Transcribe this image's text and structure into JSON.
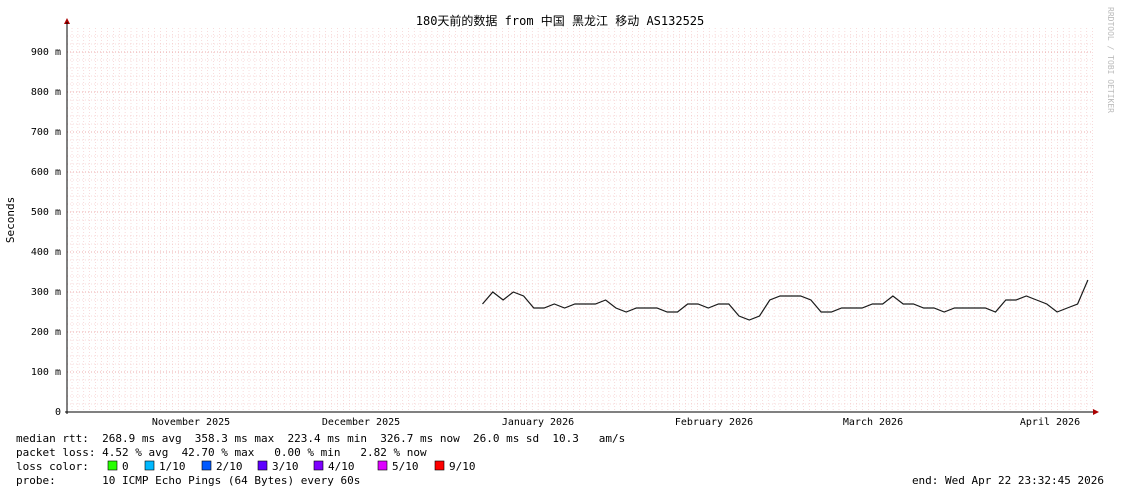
{
  "chart_data": {
    "type": "line",
    "title": "180天前的数据 from  中国 黑龙江 移动 AS132525",
    "y_label": "Seconds",
    "watermark": "RRDTOOL / TOBI OETIKER",
    "ylim": [
      0,
      0.96
    ],
    "yticks": [
      0,
      {
        "value": 0.1,
        "label": "100 m"
      },
      {
        "value": 0.2,
        "label": "200 m"
      },
      {
        "value": 0.3,
        "label": "300 m"
      },
      {
        "value": 0.4,
        "label": "400 m"
      },
      {
        "value": 0.5,
        "label": "500 m"
      },
      {
        "value": 0.6,
        "label": "600 m"
      },
      {
        "value": 0.7,
        "label": "700 m"
      },
      {
        "value": 0.8,
        "label": "800 m"
      },
      {
        "value": 0.9,
        "label": "900 m"
      }
    ],
    "month_labels": [
      "November 2025",
      "December 2025",
      "January 2026",
      "February 2026",
      "March 2026",
      "April 2026"
    ],
    "grid": true,
    "series": [
      {
        "name": "median rtt",
        "color": "#1a1a1a",
        "values": [
          null,
          null,
          null,
          null,
          null,
          null,
          null,
          null,
          null,
          null,
          null,
          null,
          null,
          null,
          null,
          null,
          null,
          null,
          null,
          null,
          null,
          null,
          null,
          null,
          null,
          null,
          null,
          null,
          null,
          null,
          null,
          null,
          null,
          null,
          null,
          null,
          null,
          null,
          null,
          null,
          0.27,
          0.3,
          0.28,
          0.3,
          0.29,
          0.26,
          0.26,
          0.27,
          0.26,
          0.27,
          0.27,
          0.27,
          0.28,
          0.26,
          0.25,
          0.26,
          0.26,
          0.26,
          0.25,
          0.25,
          0.27,
          0.27,
          0.26,
          0.27,
          0.27,
          0.24,
          0.23,
          0.24,
          0.28,
          0.29,
          0.29,
          0.29,
          0.28,
          0.25,
          0.25,
          0.26,
          0.26,
          0.26,
          0.27,
          0.27,
          0.29,
          0.27,
          0.27,
          0.26,
          0.26,
          0.25,
          0.26,
          0.26,
          0.26,
          0.26,
          0.25,
          0.28,
          0.28,
          0.29,
          0.28,
          0.27,
          0.25,
          0.26,
          0.27,
          0.33
        ]
      }
    ],
    "stats": {
      "median_rtt": "median rtt:  268.9 ms avg  358.3 ms max  223.4 ms min  326.7 ms now  26.0 ms sd  10.3   am/s",
      "packet_loss": "packet loss: 4.52 % avg  42.70 % max   0.00 % min   2.82 % now",
      "loss_color_label": "loss color:",
      "loss_colors": [
        {
          "label": "0",
          "color": "#26ff00"
        },
        {
          "label": "1/10",
          "color": "#00b8ff"
        },
        {
          "label": "2/10",
          "color": "#0059ff"
        },
        {
          "label": "3/10",
          "color": "#5e00ff"
        },
        {
          "label": "4/10",
          "color": "#7e00ff"
        },
        {
          "label": "5/10",
          "color": "#dd00ff"
        },
        {
          "label": "9/10",
          "color": "#ff0000"
        }
      ],
      "probe": "probe:       10 ICMP Echo Pings (64 Bytes) every 60s",
      "end": "end: Wed Apr 22 23:32:45 2026"
    }
  }
}
